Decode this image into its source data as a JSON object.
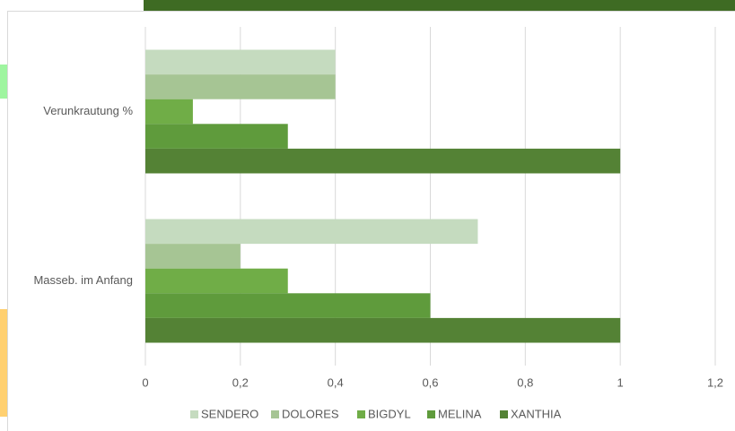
{
  "chart_data": {
    "type": "bar",
    "orientation": "horizontal",
    "categories": [
      "Verunkrautung %",
      "Masseb. im Anfang"
    ],
    "series": [
      {
        "name": "SENDERO",
        "color": "#c5dbbf",
        "values": [
          0.4,
          0.7
        ]
      },
      {
        "name": "DOLORES",
        "color": "#a6c594",
        "values": [
          0.4,
          0.2
        ]
      },
      {
        "name": "BIGDYL",
        "color": "#70ad47",
        "values": [
          0.1,
          0.3
        ]
      },
      {
        "name": "MELINA",
        "color": "#5f9b3c",
        "values": [
          0.3,
          0.6
        ]
      },
      {
        "name": "XANTHIA",
        "color": "#548235",
        "values": [
          1,
          1
        ]
      }
    ],
    "xlim": [
      0,
      1.2
    ],
    "xticks": [
      0,
      {
        "value": 0.2,
        "label": "0,2"
      },
      {
        "value": 0.4,
        "label": "0,4"
      },
      {
        "value": 0.6,
        "label": "0,6"
      },
      {
        "value": 0.8,
        "label": "0,8"
      },
      1,
      {
        "value": 1.2,
        "label": "1,2"
      }
    ],
    "grid": true,
    "legend": "bottom"
  }
}
